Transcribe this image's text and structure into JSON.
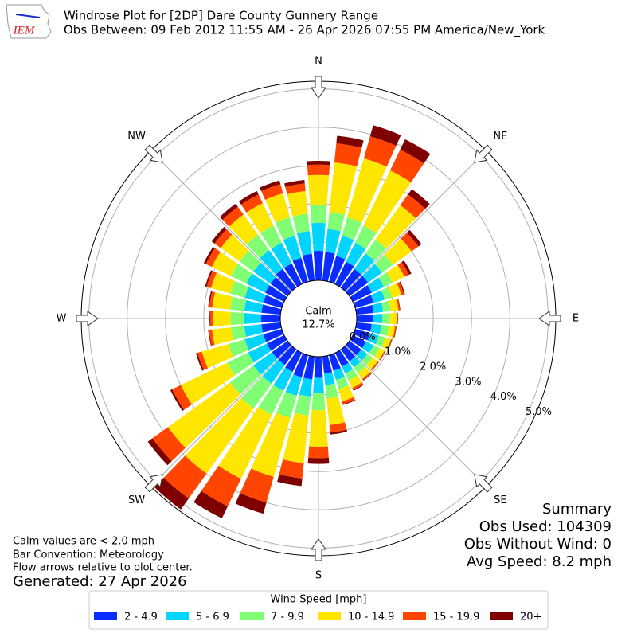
{
  "chart_data": {
    "type": "windrose",
    "title": "Windrose Plot for [2DP] Dare County Gunnery Range",
    "subtitle": "Obs Between: 09 Feb 2012 11:55 AM - 26 Apr 2026 07:55 PM America/New_York",
    "logo_text": "IEM",
    "compass_labels": [
      "N",
      "NE",
      "E",
      "SE",
      "S",
      "SW",
      "W",
      "NW"
    ],
    "calm_label": "Calm",
    "calm_value": "12.7%",
    "rlim": [
      0,
      5.2
    ],
    "rticks": [
      {
        "value": 0,
        "label": "0.0%"
      },
      {
        "value": 1,
        "label": "1.0%"
      },
      {
        "value": 2,
        "label": "2.0%"
      },
      {
        "value": 3,
        "label": "3.0%"
      },
      {
        "value": 4,
        "label": "4.0%"
      },
      {
        "value": 5,
        "label": "5.0%"
      }
    ],
    "legend_title": "Wind Speed [mph]",
    "series": [
      {
        "name": "2 - 4.9",
        "color": "#0a2cff",
        "values": [
          0.77,
          0.75,
          0.7,
          0.65,
          0.6,
          0.6,
          0.55,
          0.5,
          0.45,
          0.42,
          0.4,
          0.4,
          0.38,
          0.38,
          0.38,
          0.4,
          0.42,
          0.45,
          0.55,
          0.6,
          0.6,
          0.55,
          0.5,
          0.5,
          0.5,
          0.5,
          0.5,
          0.5,
          0.5,
          0.5,
          0.55,
          0.55,
          0.6,
          0.6,
          0.65,
          0.7
        ]
      },
      {
        "name": "5 - 6.9",
        "color": "#00d4ff",
        "values": [
          0.73,
          0.6,
          0.55,
          0.55,
          0.5,
          0.45,
          0.35,
          0.3,
          0.25,
          0.25,
          0.25,
          0.24,
          0.22,
          0.2,
          0.2,
          0.2,
          0.25,
          0.3,
          0.4,
          0.45,
          0.5,
          0.55,
          0.6,
          0.6,
          0.55,
          0.5,
          0.45,
          0.45,
          0.45,
          0.5,
          0.55,
          0.55,
          0.6,
          0.6,
          0.6,
          0.6
        ]
      },
      {
        "name": "7 - 9.9",
        "color": "#80ff74",
        "values": [
          0.46,
          0.45,
          0.5,
          0.5,
          0.45,
          0.35,
          0.25,
          0.2,
          0.2,
          0.2,
          0.2,
          0.18,
          0.17,
          0.17,
          0.18,
          0.2,
          0.25,
          0.35,
          0.45,
          0.5,
          0.6,
          0.7,
          0.8,
          0.75,
          0.6,
          0.45,
          0.35,
          0.35,
          0.37,
          0.4,
          0.45,
          0.45,
          0.5,
          0.5,
          0.5,
          0.45
        ]
      },
      {
        "name": "10 - 14.9",
        "color": "#ffe600",
        "values": [
          0.79,
          1.3,
          1.6,
          1.6,
          1.1,
          0.6,
          0.35,
          0.25,
          0.2,
          0.17,
          0.16,
          0.15,
          0.15,
          0.16,
          0.19,
          0.22,
          0.33,
          0.7,
          0.95,
          1.25,
          1.6,
          1.85,
          2.1,
          2.0,
          1.35,
          0.72,
          0.5,
          0.47,
          0.47,
          0.52,
          0.55,
          0.6,
          0.65,
          0.65,
          0.65,
          0.6
        ]
      },
      {
        "name": "15 - 19.9",
        "color": "#ff4500",
        "values": [
          0.27,
          0.5,
          0.6,
          0.6,
          0.35,
          0.22,
          0.13,
          0.07,
          0.04,
          0.03,
          0.03,
          0.02,
          0.02,
          0.03,
          0.04,
          0.06,
          0.08,
          0.2,
          0.3,
          0.4,
          0.7,
          0.8,
          0.8,
          0.5,
          0.25,
          0.12,
          0.08,
          0.06,
          0.08,
          0.12,
          0.17,
          0.2,
          0.25,
          0.25,
          0.25,
          0.2
        ]
      },
      {
        "name": "20+",
        "color": "#7f0000",
        "values": [
          0.1,
          0.2,
          0.3,
          0.3,
          0.17,
          0.1,
          0.07,
          0.03,
          0.01,
          0.01,
          0.01,
          0.01,
          0.01,
          0.01,
          0.01,
          0.02,
          0.02,
          0.05,
          0.15,
          0.2,
          0.3,
          0.35,
          0.35,
          0.15,
          0.05,
          0.04,
          0.02,
          0.02,
          0.03,
          0.04,
          0.06,
          0.09,
          0.1,
          0.1,
          0.1,
          0.09
        ]
      }
    ],
    "notes": [
      "Calm values are < 2.0 mph",
      "Bar Convention: Meteorology",
      "Flow arrows relative to plot center."
    ],
    "generated": "Generated: 27 Apr 2026",
    "summary": [
      "Summary",
      "Obs Used: 104309",
      "Obs Without Wind: 0",
      "Avg Speed: 8.2 mph"
    ]
  }
}
